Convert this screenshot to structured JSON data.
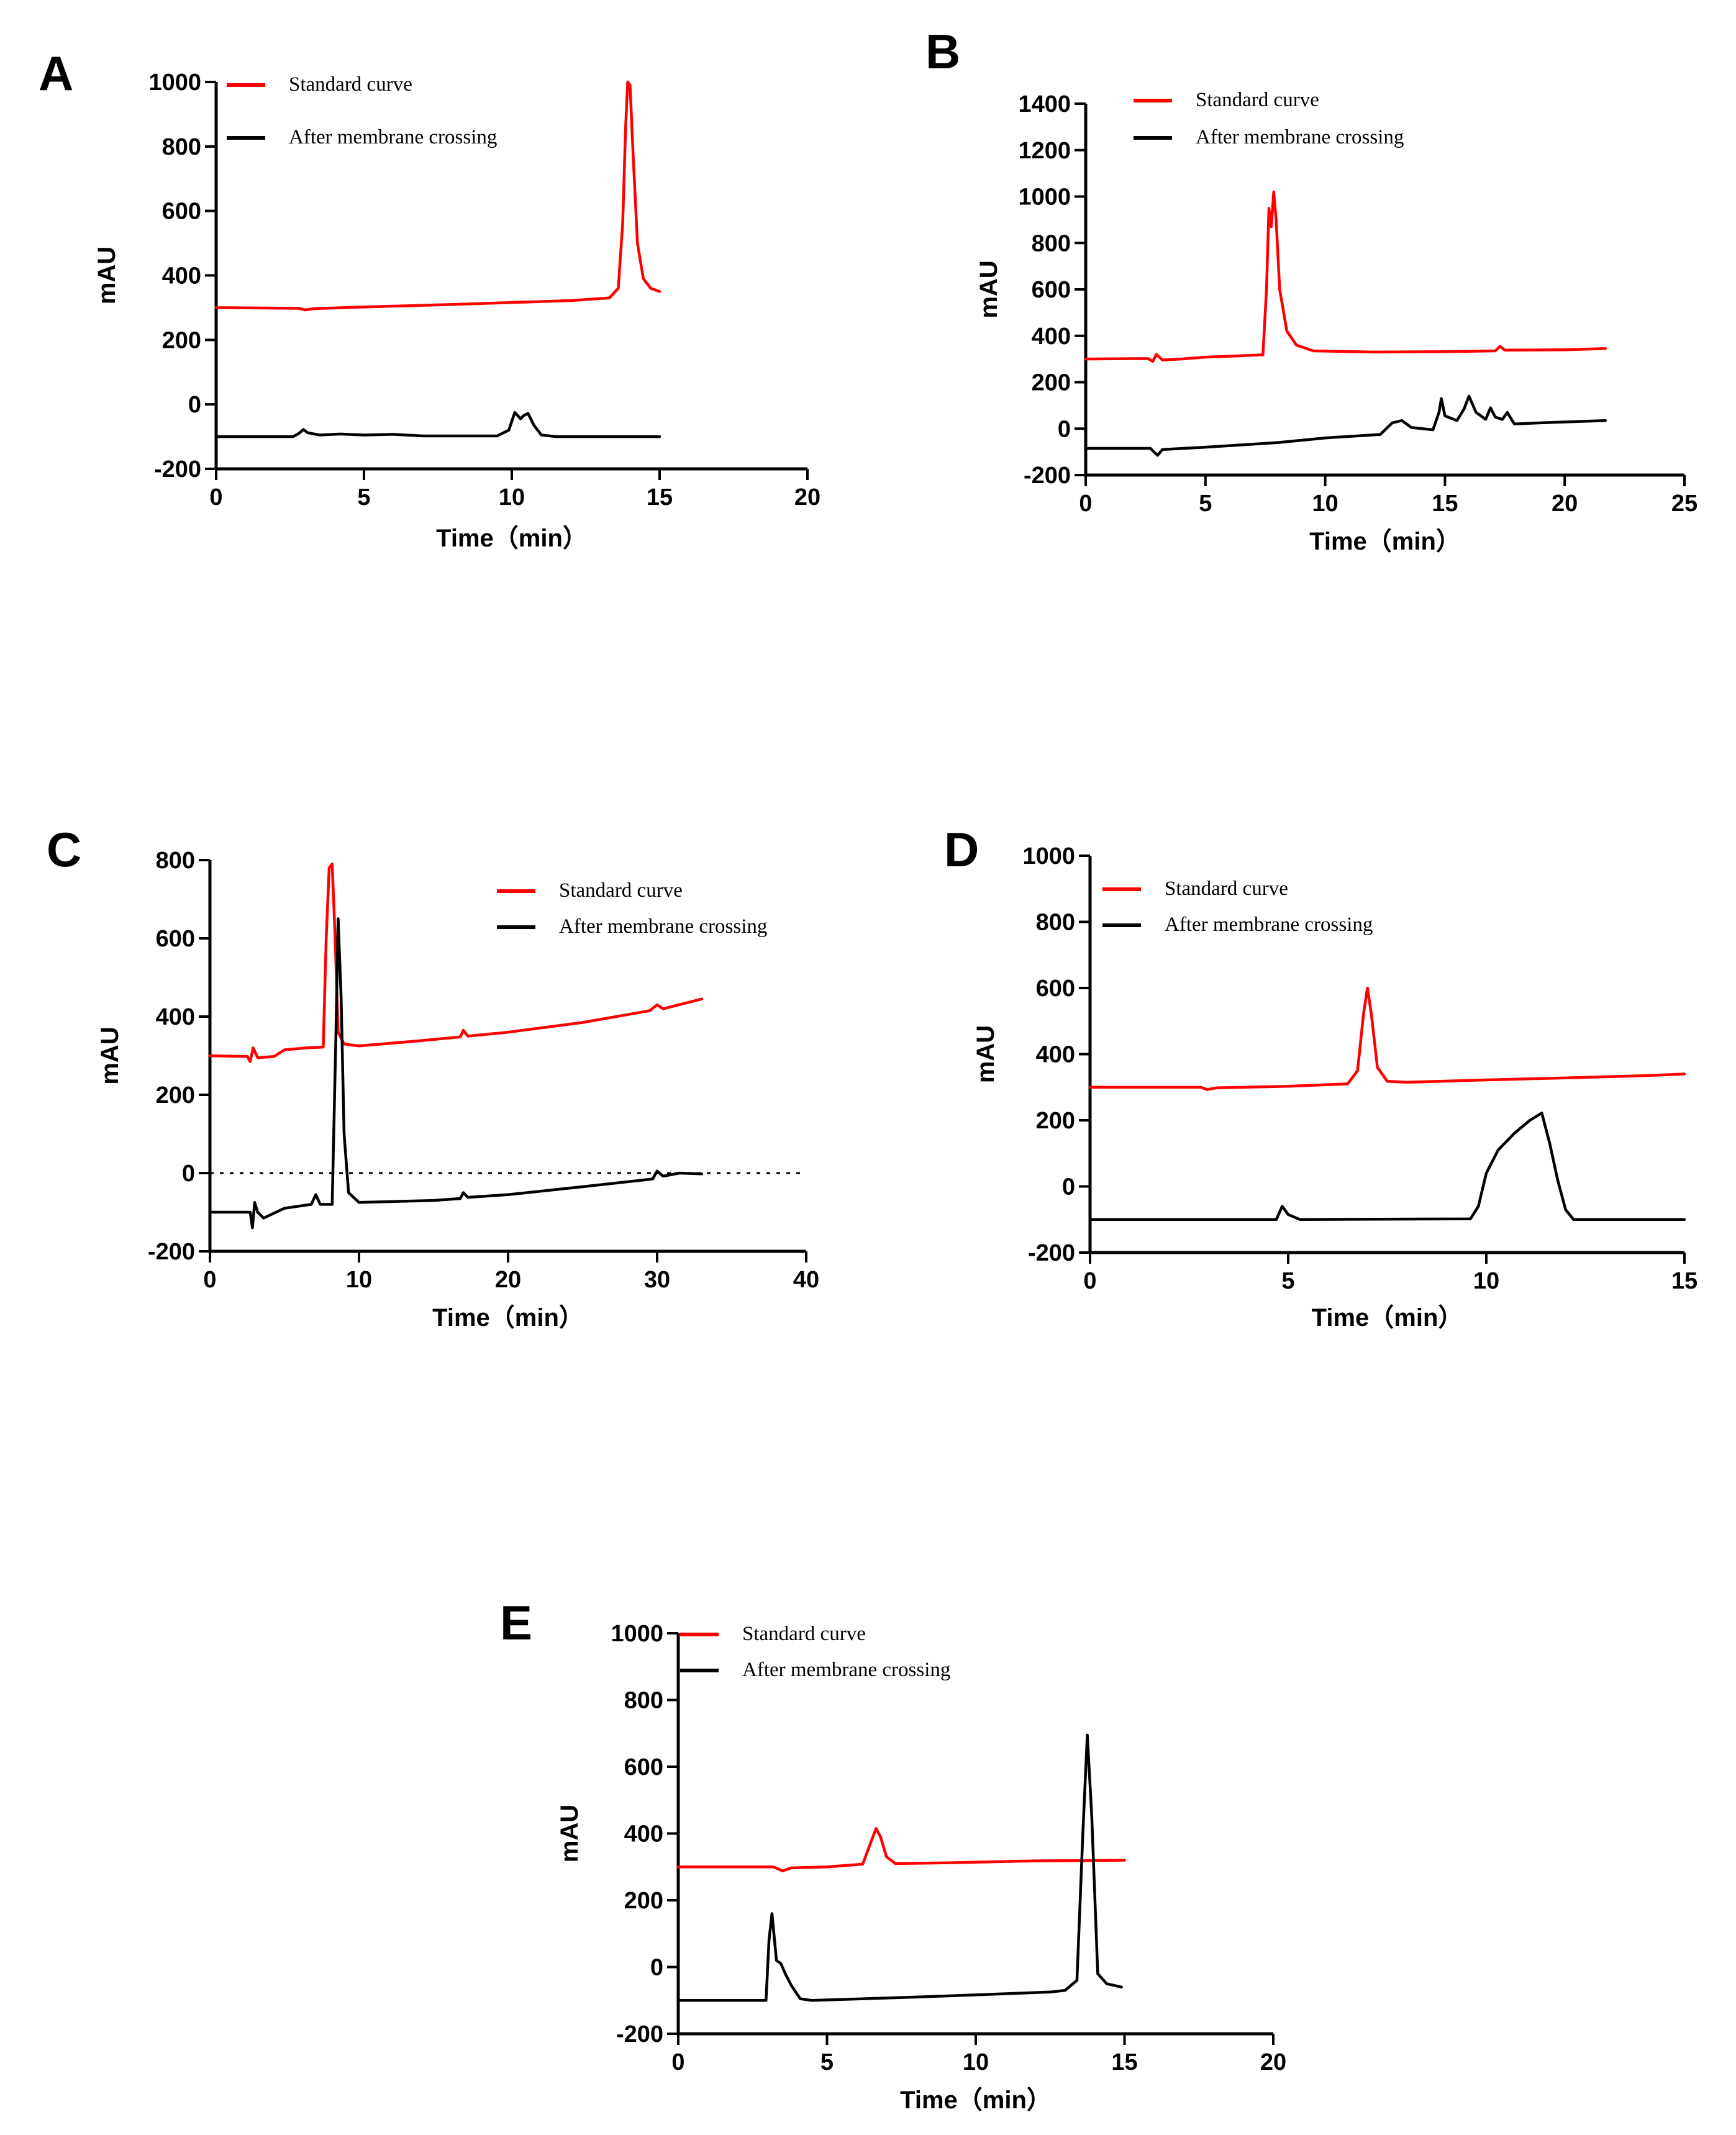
{
  "figure": {
    "colors": {
      "standard": "#ff0000",
      "crossing": "#000000",
      "axis": "#000000"
    }
  },
  "chart_data": [
    {
      "panel": "A",
      "type": "line",
      "xlabel": "Time（min）",
      "ylabel": "mAU",
      "xlim": [
        0,
        20
      ],
      "ylim": [
        -200,
        1000
      ],
      "xticks": [
        0,
        5,
        10,
        15,
        20
      ],
      "yticks": [
        -200,
        0,
        200,
        400,
        600,
        800,
        1000
      ],
      "zero_line": false,
      "legend": [
        "Standard curve",
        "After membrane crossing"
      ],
      "series": [
        {
          "name": "Standard curve",
          "color": "#ff0000",
          "points": [
            [
              0,
              300
            ],
            [
              2.8,
              298
            ],
            [
              3,
              293
            ],
            [
              3.3,
              297
            ],
            [
              5,
              302
            ],
            [
              8,
              310
            ],
            [
              10,
              316
            ],
            [
              12,
              322
            ],
            [
              13.3,
              330
            ],
            [
              13.6,
              360
            ],
            [
              13.75,
              560
            ],
            [
              13.85,
              860
            ],
            [
              13.92,
              1000
            ],
            [
              14.0,
              990
            ],
            [
              14.1,
              780
            ],
            [
              14.25,
              500
            ],
            [
              14.45,
              390
            ],
            [
              14.7,
              360
            ],
            [
              15,
              350
            ]
          ]
        },
        {
          "name": "After membrane crossing",
          "color": "#000000",
          "points": [
            [
              0,
              -100
            ],
            [
              2.6,
              -100
            ],
            [
              2.8,
              -90
            ],
            [
              2.95,
              -78
            ],
            [
              3.1,
              -88
            ],
            [
              3.5,
              -95
            ],
            [
              4.2,
              -92
            ],
            [
              5,
              -95
            ],
            [
              6,
              -93
            ],
            [
              7,
              -98
            ],
            [
              9.5,
              -98
            ],
            [
              9.9,
              -80
            ],
            [
              10.1,
              -25
            ],
            [
              10.3,
              -45
            ],
            [
              10.4,
              -35
            ],
            [
              10.55,
              -28
            ],
            [
              10.75,
              -65
            ],
            [
              11.0,
              -95
            ],
            [
              11.5,
              -100
            ],
            [
              15,
              -100
            ]
          ]
        }
      ]
    },
    {
      "panel": "B",
      "type": "line",
      "xlabel": "Time（min）",
      "ylabel": "mAU",
      "xlim": [
        0,
        25
      ],
      "ylim": [
        -200,
        1400
      ],
      "xticks": [
        0,
        5,
        10,
        15,
        20,
        25
      ],
      "yticks": [
        -200,
        0,
        200,
        400,
        600,
        800,
        1000,
        1200,
        1400
      ],
      "zero_line": false,
      "legend": [
        "Standard curve",
        "After membrane crossing"
      ],
      "series": [
        {
          "name": "Standard curve",
          "color": "#ff0000",
          "points": [
            [
              0,
              300
            ],
            [
              2.6,
              302
            ],
            [
              2.8,
              290
            ],
            [
              2.95,
              320
            ],
            [
              3.2,
              296
            ],
            [
              4,
              300
            ],
            [
              5,
              308
            ],
            [
              6,
              312
            ],
            [
              7.4,
              318
            ],
            [
              7.55,
              600
            ],
            [
              7.65,
              950
            ],
            [
              7.75,
              870
            ],
            [
              7.85,
              1020
            ],
            [
              7.95,
              900
            ],
            [
              8.1,
              600
            ],
            [
              8.4,
              420
            ],
            [
              8.8,
              360
            ],
            [
              9.5,
              335
            ],
            [
              12,
              330
            ],
            [
              15,
              332
            ],
            [
              17.1,
              335
            ],
            [
              17.3,
              355
            ],
            [
              17.5,
              338
            ],
            [
              20,
              340
            ],
            [
              21.7,
              345
            ]
          ]
        },
        {
          "name": "After membrane crossing",
          "color": "#000000",
          "points": [
            [
              0,
              -85
            ],
            [
              2.7,
              -85
            ],
            [
              2.85,
              -100
            ],
            [
              3.0,
              -115
            ],
            [
              3.2,
              -90
            ],
            [
              5,
              -80
            ],
            [
              8,
              -60
            ],
            [
              10,
              -40
            ],
            [
              12.3,
              -25
            ],
            [
              12.8,
              25
            ],
            [
              13.2,
              35
            ],
            [
              13.6,
              5
            ],
            [
              14.5,
              -5
            ],
            [
              14.75,
              70
            ],
            [
              14.85,
              130
            ],
            [
              15.0,
              55
            ],
            [
              15.5,
              35
            ],
            [
              15.8,
              85
            ],
            [
              16.0,
              140
            ],
            [
              16.3,
              70
            ],
            [
              16.7,
              40
            ],
            [
              16.9,
              90
            ],
            [
              17.1,
              50
            ],
            [
              17.4,
              40
            ],
            [
              17.6,
              70
            ],
            [
              17.9,
              20
            ],
            [
              19,
              25
            ],
            [
              21.7,
              35
            ]
          ]
        }
      ]
    },
    {
      "panel": "C",
      "type": "line",
      "xlabel": "Time（min）",
      "ylabel": "mAU",
      "xlim": [
        0,
        40
      ],
      "ylim": [
        -200,
        800
      ],
      "xticks": [
        0,
        10,
        20,
        30,
        40
      ],
      "yticks": [
        -200,
        0,
        200,
        400,
        600,
        800
      ],
      "zero_line": true,
      "legend": [
        "Standard curve",
        "After membrane crossing"
      ],
      "series": [
        {
          "name": "Standard curve",
          "color": "#ff0000",
          "points": [
            [
              0,
              300
            ],
            [
              2.5,
              298
            ],
            [
              2.7,
              285
            ],
            [
              2.9,
              320
            ],
            [
              3.2,
              295
            ],
            [
              4.3,
              298
            ],
            [
              5,
              315
            ],
            [
              6.5,
              320
            ],
            [
              7.6,
              322
            ],
            [
              7.8,
              600
            ],
            [
              8.0,
              780
            ],
            [
              8.2,
              790
            ],
            [
              8.4,
              600
            ],
            [
              8.6,
              360
            ],
            [
              9,
              330
            ],
            [
              10,
              325
            ],
            [
              14,
              338
            ],
            [
              16.8,
              348
            ],
            [
              17.0,
              365
            ],
            [
              17.3,
              350
            ],
            [
              20,
              360
            ],
            [
              25,
              385
            ],
            [
              29.5,
              415
            ],
            [
              30,
              430
            ],
            [
              30.4,
              420
            ],
            [
              33,
              445
            ]
          ]
        },
        {
          "name": "After membrane crossing",
          "color": "#000000",
          "points": [
            [
              0,
              -100
            ],
            [
              2.7,
              -100
            ],
            [
              2.85,
              -140
            ],
            [
              3.0,
              -75
            ],
            [
              3.2,
              -100
            ],
            [
              3.6,
              -115
            ],
            [
              5,
              -90
            ],
            [
              6.8,
              -80
            ],
            [
              7.1,
              -55
            ],
            [
              7.4,
              -80
            ],
            [
              8.2,
              -80
            ],
            [
              8.45,
              350
            ],
            [
              8.6,
              650
            ],
            [
              8.8,
              450
            ],
            [
              9.0,
              100
            ],
            [
              9.3,
              -50
            ],
            [
              10,
              -75
            ],
            [
              15,
              -70
            ],
            [
              16.8,
              -65
            ],
            [
              17.0,
              -50
            ],
            [
              17.3,
              -62
            ],
            [
              20,
              -55
            ],
            [
              25,
              -35
            ],
            [
              29.7,
              -15
            ],
            [
              30,
              5
            ],
            [
              30.4,
              -8
            ],
            [
              31.5,
              0
            ],
            [
              33,
              -2
            ]
          ]
        }
      ]
    },
    {
      "panel": "D",
      "type": "line",
      "xlabel": "Time（min）",
      "ylabel": "mAU",
      "xlim": [
        0,
        15
      ],
      "ylim": [
        -200,
        1000
      ],
      "xticks": [
        0,
        5,
        10,
        15
      ],
      "yticks": [
        -200,
        0,
        200,
        400,
        600,
        800,
        1000
      ],
      "zero_line": false,
      "legend": [
        "Standard curve",
        "After membrane crossing"
      ],
      "series": [
        {
          "name": "Standard curve",
          "color": "#ff0000",
          "points": [
            [
              0,
              300
            ],
            [
              2.8,
              300
            ],
            [
              2.95,
              293
            ],
            [
              3.2,
              298
            ],
            [
              5,
              303
            ],
            [
              6.5,
              310
            ],
            [
              6.75,
              350
            ],
            [
              6.9,
              520
            ],
            [
              7.0,
              600
            ],
            [
              7.1,
              520
            ],
            [
              7.25,
              360
            ],
            [
              7.5,
              318
            ],
            [
              8,
              315
            ],
            [
              10,
              322
            ],
            [
              12,
              328
            ],
            [
              14,
              335
            ],
            [
              15,
              340
            ]
          ]
        },
        {
          "name": "After membrane crossing",
          "color": "#000000",
          "points": [
            [
              0,
              -100
            ],
            [
              4.7,
              -100
            ],
            [
              4.85,
              -60
            ],
            [
              5.0,
              -85
            ],
            [
              5.3,
              -100
            ],
            [
              9.6,
              -98
            ],
            [
              9.8,
              -60
            ],
            [
              10.0,
              40
            ],
            [
              10.3,
              110
            ],
            [
              10.7,
              160
            ],
            [
              11.1,
              200
            ],
            [
              11.4,
              222
            ],
            [
              11.6,
              130
            ],
            [
              11.8,
              20
            ],
            [
              12.0,
              -70
            ],
            [
              12.2,
              -100
            ],
            [
              15,
              -100
            ]
          ]
        }
      ]
    },
    {
      "panel": "E",
      "type": "line",
      "xlabel": "Time（min）",
      "ylabel": "mAU",
      "xlim": [
        0,
        20
      ],
      "ylim": [
        -200,
        1000
      ],
      "xticks": [
        0,
        5,
        10,
        15,
        20
      ],
      "yticks": [
        -200,
        0,
        200,
        400,
        600,
        800,
        1000
      ],
      "zero_line": false,
      "legend": [
        "Standard curve",
        "After membrane crossing"
      ],
      "series": [
        {
          "name": "Standard curve",
          "color": "#ff0000",
          "points": [
            [
              0,
              300
            ],
            [
              3.2,
              300
            ],
            [
              3.5,
              288
            ],
            [
              3.8,
              297
            ],
            [
              5,
              300
            ],
            [
              6.2,
              308
            ],
            [
              6.5,
              380
            ],
            [
              6.65,
              415
            ],
            [
              6.8,
              390
            ],
            [
              7.0,
              330
            ],
            [
              7.3,
              310
            ],
            [
              9,
              312
            ],
            [
              12,
              318
            ],
            [
              15,
              320
            ]
          ]
        },
        {
          "name": "After membrane crossing",
          "color": "#000000",
          "points": [
            [
              0,
              -100
            ],
            [
              2.95,
              -100
            ],
            [
              3.05,
              80
            ],
            [
              3.15,
              160
            ],
            [
              3.3,
              20
            ],
            [
              3.45,
              10
            ],
            [
              3.6,
              -20
            ],
            [
              3.8,
              -55
            ],
            [
              4.1,
              -95
            ],
            [
              4.5,
              -100
            ],
            [
              8,
              -90
            ],
            [
              12.5,
              -75
            ],
            [
              13.0,
              -70
            ],
            [
              13.4,
              -40
            ],
            [
              13.6,
              400
            ],
            [
              13.75,
              695
            ],
            [
              13.9,
              450
            ],
            [
              14.1,
              -20
            ],
            [
              14.4,
              -50
            ],
            [
              14.9,
              -60
            ]
          ]
        }
      ]
    }
  ]
}
